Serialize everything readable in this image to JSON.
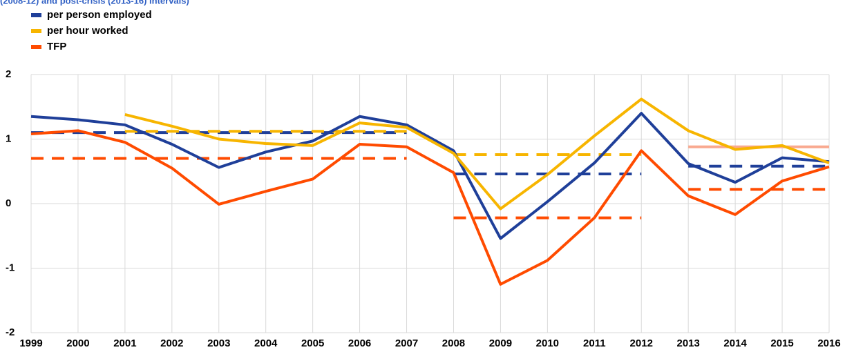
{
  "chart_data": {
    "type": "line",
    "subtitle": "(2008-12) and post-crisis (2013-16) intervals)",
    "x": [
      1999,
      2000,
      2001,
      2002,
      2003,
      2004,
      2005,
      2006,
      2007,
      2008,
      2009,
      2010,
      2011,
      2012,
      2013,
      2014,
      2015,
      2016
    ],
    "xlim": [
      1999,
      2016
    ],
    "xticks": [
      1999,
      2000,
      2001,
      2002,
      2003,
      2004,
      2005,
      2006,
      2007,
      2008,
      2009,
      2010,
      2011,
      2012,
      2013,
      2014,
      2015,
      2016
    ],
    "ylim": [
      -2,
      2
    ],
    "yticks": [
      -2,
      -1,
      0,
      1,
      2
    ],
    "grid": true,
    "series": [
      {
        "name": "per person employed",
        "color": "#1f3f99",
        "values": [
          1.35,
          1.3,
          1.22,
          0.92,
          0.56,
          0.8,
          0.97,
          1.35,
          1.22,
          0.82,
          -0.54,
          0.03,
          0.63,
          1.4,
          0.62,
          0.33,
          0.71,
          0.65
        ]
      },
      {
        "name": "per hour worked",
        "color": "#f7b500",
        "values": [
          null,
          null,
          1.38,
          1.2,
          1.0,
          0.93,
          0.9,
          1.25,
          1.18,
          0.78,
          -0.08,
          0.45,
          1.05,
          1.62,
          1.13,
          0.84,
          0.9,
          0.63
        ]
      },
      {
        "name": "TFP",
        "color": "#ff4b00",
        "values": [
          1.08,
          1.13,
          0.95,
          0.55,
          -0.01,
          0.19,
          0.38,
          0.92,
          0.88,
          0.48,
          -1.25,
          -0.88,
          -0.22,
          0.82,
          0.12,
          -0.17,
          0.35,
          0.57
        ]
      }
    ],
    "averages": [
      {
        "color": "#1f3f99",
        "dashed": true,
        "x": [
          1999,
          2007
        ],
        "value": 1.1
      },
      {
        "color": "#1f3f99",
        "dashed": true,
        "x": [
          2008,
          2012
        ],
        "value": 0.46
      },
      {
        "color": "#1f3f99",
        "dashed": true,
        "x": [
          2013,
          2016
        ],
        "value": 0.58
      },
      {
        "color": "#f7b500",
        "dashed": true,
        "x": [
          2001,
          2007
        ],
        "value": 1.12
      },
      {
        "color": "#f7b500",
        "dashed": true,
        "x": [
          2008,
          2012
        ],
        "value": 0.76
      },
      {
        "color": "#f9a98f",
        "dashed": false,
        "x": [
          2013,
          2016
        ],
        "value": 0.88
      },
      {
        "color": "#ff4b00",
        "dashed": true,
        "x": [
          1999,
          2007
        ],
        "value": 0.7
      },
      {
        "color": "#ff4b00",
        "dashed": true,
        "x": [
          2008,
          2012
        ],
        "value": -0.22
      },
      {
        "color": "#ff4b00",
        "dashed": true,
        "x": [
          2013,
          2016
        ],
        "value": 0.22
      }
    ]
  }
}
